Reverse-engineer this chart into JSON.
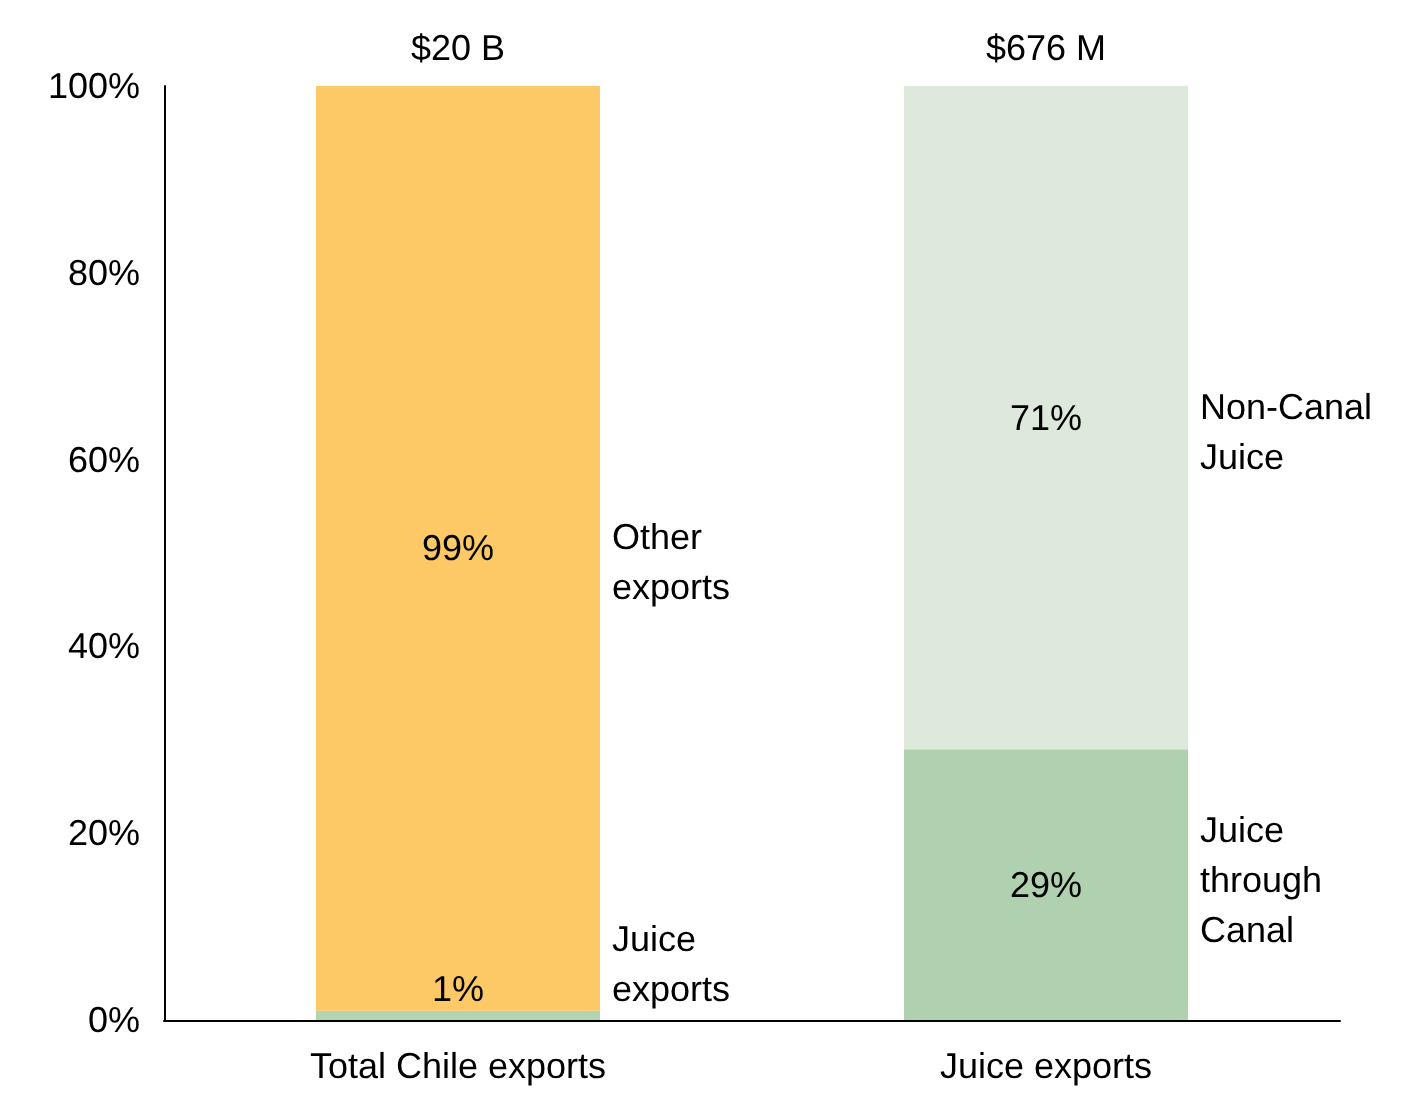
{
  "chart_data": {
    "type": "bar",
    "stacked": true,
    "categories": [
      "Total Chile exports",
      "Juice exports"
    ],
    "series": [
      {
        "colors": [
          "#b3d4b0",
          "#b0d1b0"
        ],
        "values": [
          1,
          29
        ],
        "value_labels": [
          "1%",
          "29%"
        ]
      },
      {
        "colors": [
          "#fdc966",
          "#dce9db"
        ],
        "values": [
          99,
          71
        ],
        "value_labels": [
          "99%",
          "71%"
        ]
      }
    ],
    "ylim": [
      0,
      100
    ],
    "yticks": [
      {
        "value": 0,
        "label": "0%"
      },
      {
        "value": 20,
        "label": "20%"
      },
      {
        "value": 40,
        "label": "40%"
      },
      {
        "value": 60,
        "label": "60%"
      },
      {
        "value": 80,
        "label": "80%"
      },
      {
        "value": 100,
        "label": "100%"
      }
    ],
    "annotations": [
      "$20 B",
      "$676 M",
      "Other exports",
      "Juice exports",
      "Non-Canal Juice",
      "Juice through Canal"
    ],
    "grid": false
  }
}
